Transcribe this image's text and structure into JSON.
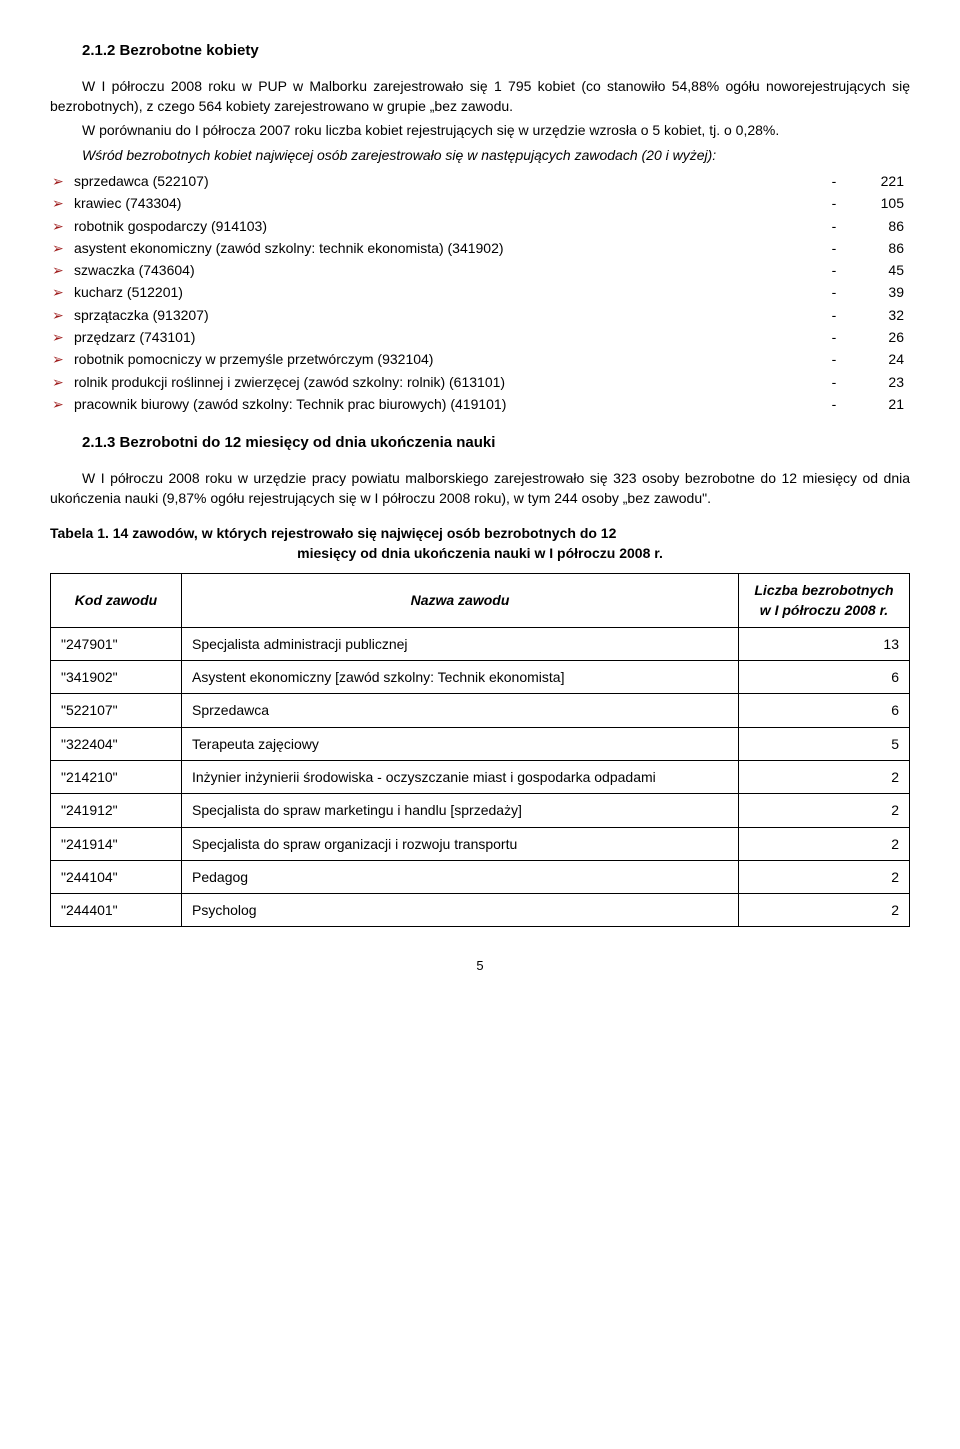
{
  "section1": {
    "heading": "2.1.2 Bezrobotne kobiety",
    "p1": "W I półroczu 2008 roku w PUP w Malborku zarejestrowało się 1 795 kobiet (co stanowiło 54,88% ogółu noworejestrujących się bezrobotnych), z czego 564 kobiety zarejestrowano w grupie „bez zawodu.",
    "p2": "W porównaniu do I półrocza 2007 roku liczba kobiet rejestrujących się w urzędzie wzrosła o 5 kobiet, tj. o 0,28%.",
    "p3": "Wśród bezrobotnych kobiet najwięcej osób zarejestrowało się w następujących zawodach (20 i wyżej):",
    "items": [
      {
        "label": "sprzedawca (522107)",
        "value": "221"
      },
      {
        "label": "krawiec (743304)",
        "value": "105"
      },
      {
        "label": "robotnik gospodarczy (914103)",
        "value": "86"
      },
      {
        "label": "asystent ekonomiczny (zawód szkolny: technik ekonomista) (341902)",
        "value": "86"
      },
      {
        "label": "szwaczka (743604)",
        "value": "45"
      },
      {
        "label": "kucharz (512201)",
        "value": "39"
      },
      {
        "label": "sprzątaczka (913207)",
        "value": "32"
      },
      {
        "label": "przędzarz (743101)",
        "value": "26"
      },
      {
        "label": "robotnik pomocniczy w przemyśle przetwórczym (932104)",
        "value": "24"
      },
      {
        "label": "rolnik produkcji roślinnej i zwierzęcej (zawód szkolny: rolnik) (613101)",
        "value": "23"
      },
      {
        "label": "pracownik biurowy (zawód szkolny: Technik prac biurowych) (419101)",
        "value": "21"
      }
    ]
  },
  "section2": {
    "heading": "2.1.3 Bezrobotni do 12 miesięcy od dnia ukończenia nauki",
    "p1": "W I półroczu 2008 roku  w urzędzie pracy powiatu malborskiego zarejestrowało się 323 osoby bezrobotne do 12 miesięcy od dnia ukończenia nauki (9,87% ogółu rejestrujących się w I półroczu 2008 roku), w tym 244 osoby „bez zawodu\"."
  },
  "table": {
    "title_line1": "Tabela 1. 14 zawodów, w których rejestrowało się najwięcej osób bezrobotnych do 12",
    "title_line2": "miesięcy od dnia ukończenia nauki w I półroczu 2008 r.",
    "headers": {
      "code": "Kod zawodu",
      "name": "Nazwa zawodu",
      "count": "Liczba bezrobotnych w I półroczu 2008 r."
    },
    "rows": [
      {
        "code": "\"247901\"",
        "name": "Specjalista administracji publicznej",
        "count": "13"
      },
      {
        "code": "\"341902\"",
        "name": "Asystent ekonomiczny [zawód szkolny: Technik ekonomista]",
        "count": "6"
      },
      {
        "code": "\"522107\"",
        "name": "Sprzedawca",
        "count": "6"
      },
      {
        "code": "\"322404\"",
        "name": "Terapeuta zajęciowy",
        "count": "5"
      },
      {
        "code": "\"214210\"",
        "name": "Inżynier inżynierii środowiska - oczyszczanie miast i gospodarka odpadami",
        "count": "2"
      },
      {
        "code": "\"241912\"",
        "name": "Specjalista do spraw marketingu i handlu [sprzedaży]",
        "count": "2"
      },
      {
        "code": "\"241914\"",
        "name": "Specjalista do spraw organizacji i rozwoju transportu",
        "count": "2"
      },
      {
        "code": "\"244104\"",
        "name": "Pedagog",
        "count": "2"
      },
      {
        "code": "\"244401\"",
        "name": "Psycholog",
        "count": "2"
      }
    ]
  },
  "pageNumber": "5",
  "markerGlyph": "➢",
  "sepGlyph": "-"
}
